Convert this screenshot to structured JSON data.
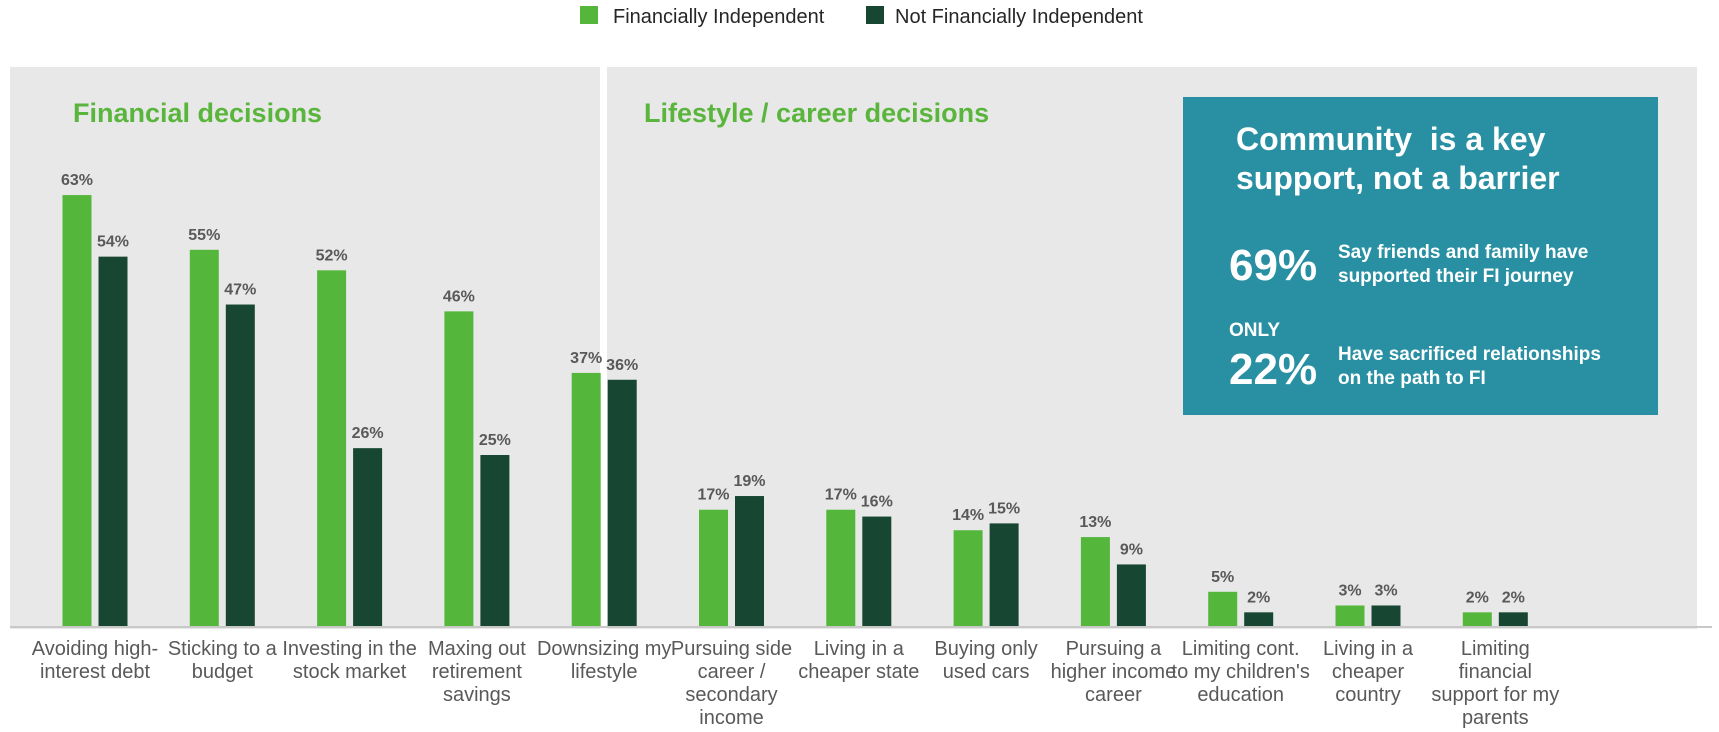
{
  "chart_data": {
    "type": "bar",
    "series": [
      {
        "name": "Financially Independent",
        "color": "#55b63c",
        "values": [
          63,
          55,
          52,
          46,
          37,
          17,
          17,
          14,
          13,
          5,
          3,
          2
        ]
      },
      {
        "name": "Not Financially Independent",
        "color": "#174632",
        "values": [
          54,
          47,
          26,
          25,
          36,
          19,
          16,
          15,
          9,
          2,
          3,
          2
        ]
      }
    ],
    "categories": [
      [
        "Avoiding high-",
        "interest debt"
      ],
      [
        "Sticking to a",
        "budget"
      ],
      [
        "Investing in the",
        "stock market"
      ],
      [
        "Maxing out",
        "retirement",
        "savings"
      ],
      [
        "Downsizing my",
        "lifestyle"
      ],
      [
        "Pursuing side",
        "career /",
        "secondary",
        "income"
      ],
      [
        "Living in a",
        "cheaper state"
      ],
      [
        "Buying only",
        "used cars"
      ],
      [
        "Pursuing a",
        "higher income",
        "career"
      ],
      [
        "Limiting cont.",
        "to my children's",
        "education"
      ],
      [
        "Living in a",
        "cheaper",
        "country"
      ],
      [
        "Limiting",
        "financial",
        "support for my",
        "parents"
      ]
    ],
    "value_suffix": "%",
    "ylim": [
      0,
      70
    ],
    "panels": [
      {
        "title": "Financial decisions",
        "categories_index": [
          0,
          1,
          2,
          3
        ]
      },
      {
        "title": "Lifestyle / career decisions",
        "categories_index": [
          4,
          5,
          6,
          7,
          8,
          9,
          10,
          11
        ]
      }
    ],
    "legend_position": "top-center",
    "grid": false
  },
  "callout": {
    "title_line1": "Community  is a key",
    "title_line2": "support, not a barrier",
    "stat1_value": "69%",
    "stat1_text_line1": "Say friends and family have",
    "stat1_text_line2": "supported their FI journey",
    "stat2_prefix": "ONLY",
    "stat2_value": "22%",
    "stat2_text_line1": "Have sacrificed relationships",
    "stat2_text_line2": "on the path to FI",
    "background": "#2990a3"
  },
  "colors": {
    "panel_bg": "#e8e8e8",
    "title_green": "#5ab53c",
    "axis": "#c8c8c8"
  }
}
